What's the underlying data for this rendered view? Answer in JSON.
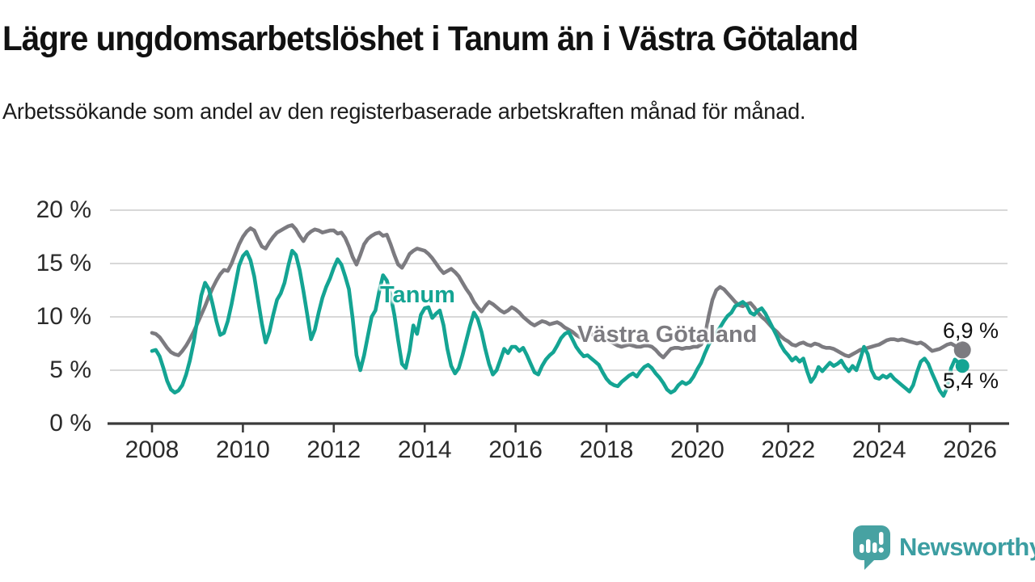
{
  "header": {
    "title": "Lägre ungdomsarbetslöshet i Tanum än i Västra Götaland",
    "subtitle": "Arbetssökande som andel av den registerbaserade arbetskraften månad för månad."
  },
  "chart_data": {
    "type": "line",
    "unit": "%",
    "frequency": "monthly",
    "start": {
      "year": 2008,
      "month": 1
    },
    "end": {
      "year": 2025,
      "month": 11
    },
    "grid": "horizontal-only",
    "x_axis": {
      "ticks": [
        2008,
        2010,
        2012,
        2014,
        2016,
        2018,
        2020,
        2022,
        2024,
        2026
      ]
    },
    "y_axis": {
      "ticks": [
        0,
        5,
        10,
        15,
        20
      ],
      "tick_labels": [
        "0 %",
        "5 %",
        "10 %",
        "15 %",
        "20 %"
      ],
      "range": [
        0,
        20
      ]
    },
    "series": [
      {
        "name": "Västra Götaland",
        "color": "#7C7B80",
        "end_label": "6,9 %",
        "end_value": 6.9,
        "values": [
          8.5,
          8.4,
          8.1,
          7.6,
          7.1,
          6.7,
          6.5,
          6.4,
          6.8,
          7.3,
          7.9,
          8.6,
          9.4,
          10.2,
          11.0,
          11.9,
          12.7,
          13.4,
          14.0,
          14.4,
          14.3,
          15.0,
          15.9,
          16.8,
          17.5,
          18.0,
          18.3,
          18.1,
          17.3,
          16.6,
          16.4,
          17.0,
          17.5,
          17.9,
          18.1,
          18.3,
          18.5,
          18.6,
          18.2,
          17.6,
          17.1,
          17.7,
          18.0,
          18.2,
          18.1,
          17.9,
          18.0,
          18.1,
          18.1,
          17.8,
          17.9,
          17.4,
          16.6,
          15.6,
          14.9,
          15.8,
          16.8,
          17.3,
          17.6,
          17.8,
          17.9,
          17.6,
          17.7,
          16.8,
          15.8,
          14.9,
          14.6,
          15.2,
          15.9,
          16.2,
          16.4,
          16.3,
          16.2,
          15.9,
          15.5,
          15.0,
          14.5,
          14.1,
          14.3,
          14.5,
          14.2,
          13.8,
          13.2,
          12.6,
          12.1,
          11.4,
          10.9,
          10.5,
          11.0,
          11.4,
          11.2,
          10.9,
          10.6,
          10.4,
          10.6,
          10.9,
          10.7,
          10.4,
          10.0,
          9.7,
          9.4,
          9.2,
          9.4,
          9.6,
          9.5,
          9.3,
          9.4,
          9.5,
          9.3,
          9.0,
          8.8,
          8.6,
          8.3,
          8.1,
          8.3,
          8.5,
          8.4,
          8.2,
          8.3,
          8.2,
          8.0,
          7.7,
          7.5,
          7.3,
          7.2,
          7.3,
          7.4,
          7.3,
          7.2,
          7.2,
          7.3,
          7.3,
          7.2,
          6.9,
          6.5,
          6.2,
          6.6,
          7.0,
          7.1,
          7.1,
          7.0,
          7.1,
          7.1,
          7.2,
          7.2,
          7.4,
          8.2,
          10.1,
          11.6,
          12.5,
          12.8,
          12.6,
          12.2,
          11.8,
          11.4,
          11.1,
          11.0,
          11.2,
          11.3,
          10.9,
          10.4,
          10.0,
          9.7,
          9.3,
          8.9,
          8.6,
          8.2,
          7.9,
          7.7,
          7.4,
          7.3,
          7.5,
          7.6,
          7.4,
          7.3,
          7.5,
          7.4,
          7.2,
          7.1,
          7.1,
          7.0,
          6.8,
          6.6,
          6.4,
          6.3,
          6.5,
          6.7,
          6.9,
          7.0,
          7.1,
          7.2,
          7.3,
          7.4,
          7.6,
          7.8,
          7.9,
          7.9,
          7.8,
          7.9,
          7.8,
          7.7,
          7.6,
          7.5,
          7.6,
          7.4,
          7.1,
          6.8,
          6.9,
          7.0,
          7.2,
          7.4,
          7.5,
          7.3,
          7.1,
          6.9
        ]
      },
      {
        "name": "Tanum",
        "color": "#14A493",
        "end_label": "5,4 %",
        "end_value": 5.4,
        "values": [
          6.8,
          6.9,
          6.3,
          5.2,
          4.0,
          3.2,
          2.9,
          3.1,
          3.6,
          4.6,
          5.9,
          7.6,
          9.8,
          12.0,
          13.2,
          12.6,
          11.2,
          9.6,
          8.3,
          8.5,
          9.6,
          11.2,
          13.0,
          14.8,
          15.7,
          16.1,
          15.3,
          13.8,
          11.6,
          9.4,
          7.6,
          8.6,
          10.2,
          11.6,
          12.2,
          13.2,
          14.8,
          16.2,
          15.8,
          14.4,
          12.4,
          10.2,
          7.9,
          8.8,
          10.4,
          11.8,
          12.8,
          13.6,
          14.6,
          15.4,
          14.9,
          13.8,
          12.6,
          9.8,
          6.4,
          5.0,
          6.4,
          8.2,
          10.0,
          10.6,
          12.4,
          13.9,
          13.4,
          12.0,
          10.2,
          7.8,
          5.6,
          5.2,
          6.8,
          9.2,
          8.4,
          10.2,
          10.8,
          10.9,
          9.9,
          10.3,
          10.6,
          9.2,
          7.0,
          5.4,
          4.7,
          5.2,
          6.4,
          7.8,
          9.2,
          10.4,
          9.8,
          8.6,
          7.0,
          5.6,
          4.6,
          5.0,
          6.0,
          7.0,
          6.6,
          7.2,
          7.2,
          6.8,
          7.1,
          6.4,
          5.6,
          4.8,
          4.6,
          5.4,
          6.0,
          6.4,
          6.7,
          7.3,
          8.0,
          8.4,
          8.6,
          7.9,
          7.2,
          6.7,
          6.3,
          6.4,
          6.1,
          5.8,
          5.5,
          4.8,
          4.2,
          3.8,
          3.6,
          3.5,
          3.9,
          4.2,
          4.5,
          4.7,
          4.4,
          4.9,
          5.3,
          5.5,
          5.2,
          4.7,
          4.3,
          3.8,
          3.2,
          2.9,
          3.1,
          3.6,
          3.9,
          3.7,
          3.9,
          4.4,
          5.1,
          5.7,
          6.6,
          7.4,
          8.0,
          8.5,
          9.0,
          9.6,
          10.1,
          10.4,
          11.0,
          11.2,
          11.4,
          11.1,
          10.4,
          10.2,
          10.6,
          10.8,
          10.3,
          9.6,
          8.9,
          8.2,
          7.4,
          6.8,
          6.4,
          5.9,
          6.2,
          5.8,
          6.1,
          4.9,
          3.9,
          4.4,
          5.3,
          4.9,
          5.3,
          5.7,
          5.4,
          5.6,
          5.9,
          5.3,
          4.9,
          5.4,
          5.0,
          6.0,
          7.2,
          6.5,
          5.0,
          4.3,
          4.2,
          4.5,
          4.3,
          4.6,
          4.2,
          3.9,
          3.6,
          3.3,
          3.0,
          3.6,
          4.8,
          5.8,
          6.1,
          5.6,
          4.7,
          3.9,
          3.1,
          2.6,
          3.4,
          5.2,
          6.0,
          5.7,
          5.4
        ]
      }
    ],
    "colors": {
      "axis": "#3a3a3a",
      "gridline": "#d8d8d8",
      "tick_text": "#2b2b2b"
    }
  },
  "footer": {
    "brand": "Newsworthy",
    "brand_color": "#3C9EA2",
    "logo_color": "#47A2A2"
  }
}
